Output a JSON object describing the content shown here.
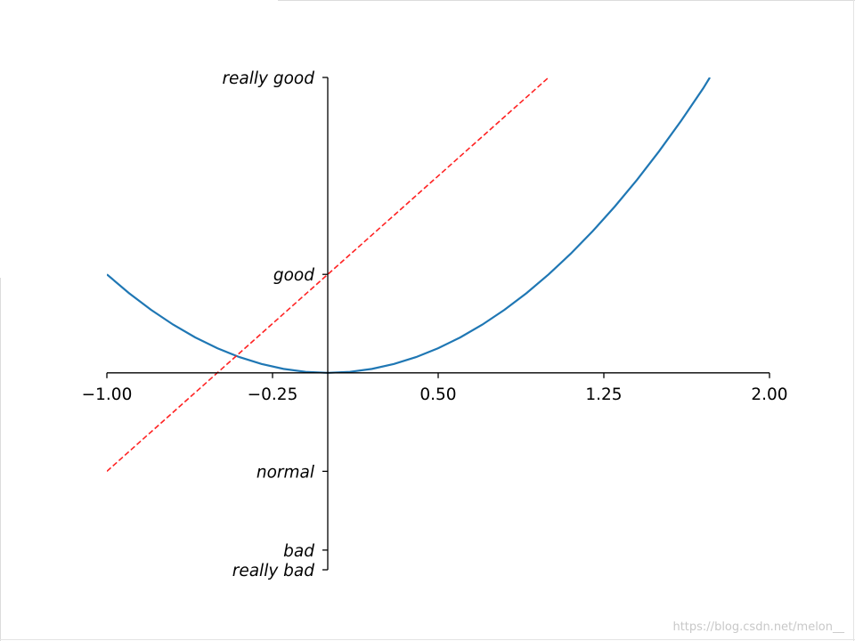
{
  "chart_data": {
    "type": "line",
    "title": "",
    "xlabel": "",
    "ylabel": "",
    "xlim": [
      -1,
      2
    ],
    "ylim": [
      -2,
      3
    ],
    "xticks": [
      -1.0,
      -0.25,
      0.5,
      1.25,
      2.0
    ],
    "xtick_labels": [
      "−1.00",
      "−0.25",
      "0.50",
      "1.25",
      "2.00"
    ],
    "yticks": [
      -2,
      -1.8,
      -1,
      1,
      3
    ],
    "ytick_labels": [
      "really bad",
      "bad",
      "normal",
      "good",
      "really good"
    ],
    "grid": false,
    "legend": "none",
    "spines": "centered at data origin (0,0); top and right hidden",
    "series": [
      {
        "style": "solid",
        "color": "#1f77b4",
        "x": [
          -1.0,
          -0.9,
          -0.8,
          -0.7,
          -0.6,
          -0.5,
          -0.4,
          -0.3,
          -0.2,
          -0.1,
          0.0,
          0.1,
          0.2,
          0.3,
          0.4,
          0.5,
          0.6,
          0.7,
          0.8,
          0.9,
          1.0,
          1.1,
          1.2,
          1.3,
          1.4,
          1.5,
          1.6,
          1.7,
          1.73
        ],
        "y": [
          1.0,
          0.81,
          0.64,
          0.49,
          0.36,
          0.25,
          0.16,
          0.09,
          0.04,
          0.01,
          0.0,
          0.01,
          0.04,
          0.09,
          0.16,
          0.25,
          0.36,
          0.49,
          0.64,
          0.81,
          1.0,
          1.21,
          1.44,
          1.69,
          1.96,
          2.25,
          2.56,
          2.89,
          3.0
        ]
      },
      {
        "style": "dashed",
        "color": "#ff2222",
        "x": [
          -1.0,
          1.0
        ],
        "y": [
          -1.0,
          3.0
        ]
      }
    ]
  },
  "watermark": "https://blog.csdn.net/melon__"
}
